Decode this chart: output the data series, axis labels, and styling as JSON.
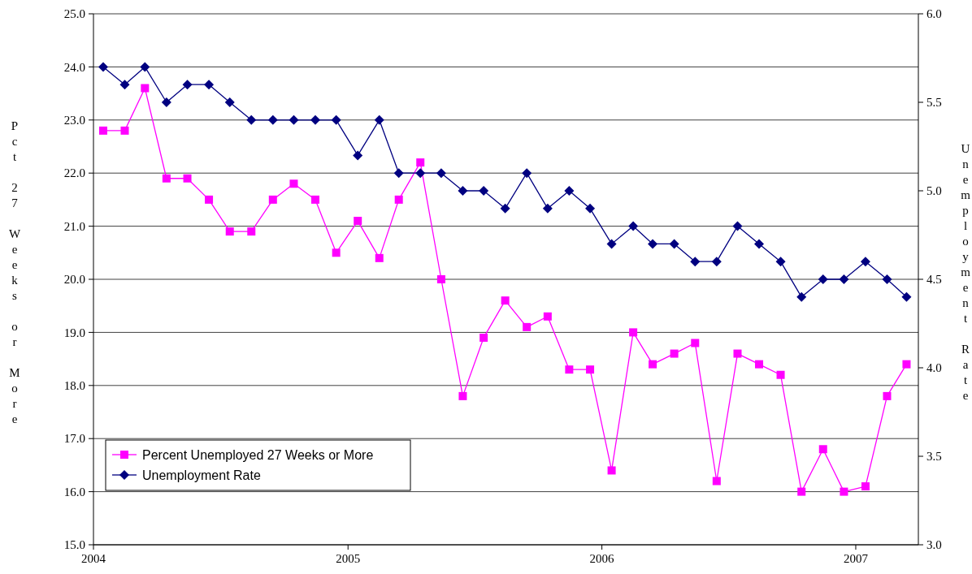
{
  "chart_data": {
    "type": "line",
    "xlabel": null,
    "ylabel": "Pct 27 Weeks or More",
    "y2label": "Unemployment Rate",
    "x": [
      "2004-01-15",
      "2004-02-15",
      "2004-03-15",
      "2004-04-15",
      "2004-05-15",
      "2004-06-15",
      "2004-07-15",
      "2004-08-15",
      "2004-09-15",
      "2004-10-15",
      "2004-11-15",
      "2004-12-15",
      "2005-01-15",
      "2005-02-15",
      "2005-03-15",
      "2005-04-15",
      "2005-05-15",
      "2005-06-15",
      "2005-07-15",
      "2005-08-15",
      "2005-09-15",
      "2005-10-15",
      "2005-11-15",
      "2005-12-15",
      "2006-01-15",
      "2006-02-15",
      "2006-03-15",
      "2006-04-15",
      "2006-05-15",
      "2006-06-15",
      "2006-07-15",
      "2006-08-15",
      "2006-09-15",
      "2006-10-15",
      "2006-11-15",
      "2006-12-15",
      "2007-01-15",
      "2007-02-15",
      "2007-03-15"
    ],
    "series": [
      {
        "name": "Percent Unemployed 27 Weeks or More",
        "color": "#ff00ff",
        "marker": "square",
        "values": [
          22.8,
          22.8,
          23.6,
          21.9,
          21.9,
          21.5,
          20.9,
          20.9,
          21.5,
          21.8,
          21.5,
          20.5,
          21.1,
          20.4,
          21.5,
          22.2,
          20.0,
          17.8,
          18.9,
          19.6,
          19.1,
          19.3,
          18.3,
          18.3,
          16.4,
          19.0,
          18.4,
          18.6,
          18.8,
          16.2,
          18.6,
          18.4,
          18.2,
          16.0,
          16.8,
          16.0,
          16.1,
          17.8,
          18.4
        ]
      },
      {
        "name": "Unemployment Rate",
        "color": "#000080",
        "marker": "diamond",
        "axis": "y2",
        "values": [
          5.7,
          5.6,
          5.7,
          5.5,
          5.6,
          5.6,
          5.5,
          5.4,
          5.4,
          5.4,
          5.4,
          5.4,
          5.2,
          5.4,
          5.1,
          5.1,
          5.1,
          5.0,
          5.0,
          4.9,
          5.1,
          4.9,
          5.0,
          4.9,
          4.7,
          4.8,
          4.7,
          4.7,
          4.6,
          4.6,
          4.8,
          4.7,
          4.6,
          4.4,
          4.5,
          4.5,
          4.6,
          4.5,
          4.4
        ]
      }
    ],
    "xlim": [
      "2004-01-01",
      "2007-04-01"
    ],
    "xticks": [
      "2004",
      "2005",
      "2006",
      "2007"
    ],
    "ylim": [
      15,
      25
    ],
    "yticks": [
      {
        "value": 15,
        "label": "15.0"
      },
      {
        "value": 16,
        "label": "16.0"
      },
      {
        "value": 17,
        "label": "17.0"
      },
      {
        "value": 18,
        "label": "18.0"
      },
      {
        "value": 19,
        "label": "19.0"
      },
      {
        "value": 20,
        "label": "20.0"
      },
      {
        "value": 21,
        "label": "21.0"
      },
      {
        "value": 22,
        "label": "22.0"
      },
      {
        "value": 23,
        "label": "23.0"
      },
      {
        "value": 24,
        "label": "24.0"
      },
      {
        "value": 25,
        "label": "25.0"
      }
    ],
    "y2lim": [
      3,
      6
    ],
    "y2ticks": [
      {
        "value": 3,
        "label": "3.0"
      },
      {
        "value": 3.5,
        "label": "3.5"
      },
      {
        "value": 4,
        "label": "4.0"
      },
      {
        "value": 4.5,
        "label": "4.5"
      },
      {
        "value": 5,
        "label": "5.0"
      },
      {
        "value": 5.5,
        "label": "5.5"
      },
      {
        "value": 6,
        "label": "6.0"
      }
    ],
    "grid": "y",
    "legend": "bottom left",
    "line_style": "solid"
  }
}
